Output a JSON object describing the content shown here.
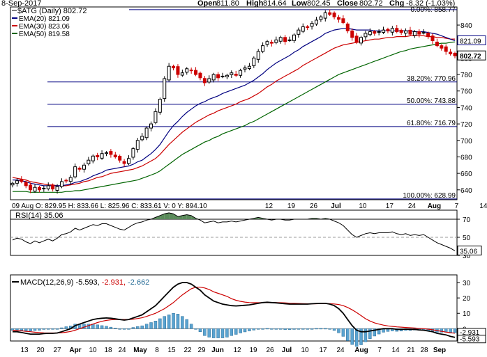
{
  "header": {
    "date": "8-Sep-2017",
    "open_label": "Open",
    "open": "811.80",
    "high_label": "High",
    "high": "814.64",
    "low_label": "Low",
    "low": "802.45",
    "close_label": "Close",
    "close": "802.72",
    "chg_label": "Chg",
    "chg": "-8.32 (-1.03%)"
  },
  "legend": {
    "symbol": "$ATG (Daily) 802.72",
    "ema20": "EMA(20) 821.09",
    "ema30": "EMA(30) 823.06",
    "ema50": "EMA(50) 819.58"
  },
  "colors": {
    "price_up": "#000000",
    "price_down": "#cc0000",
    "ema20": "#000080",
    "ema30": "#cc0000",
    "ema50": "#006400",
    "fib": "#000080",
    "rsi_fill": "#5a8a5a",
    "macd_hist": "#5ba3d0",
    "macd_line": "#000000",
    "signal_line": "#cc0000"
  },
  "volume_bar_text": "09 Aug O: 829.95  H: 833.66  L: 825.96  C: 833.61  V: 0  Y: 894.10",
  "rsi_label": "RSI(14) 35.06",
  "rsi_value": "35.06",
  "macd_label_prefix": "MACD(12,26,9) ",
  "macd_label_value": "-5.593",
  "macd_label_signal": "-2.931",
  "macd_label_hist": "-2.662",
  "macd_value_box": "-5.593",
  "macd_hist_box": "-2.931",
  "price_box_ema": "821.09",
  "price_box_close": "802.72",
  "chart_data": [
    {
      "type": "candlestick",
      "title": "$ATG (Daily)",
      "ylim": [
        628,
        862
      ],
      "y_ticks": [
        640,
        660,
        680,
        700,
        720,
        740,
        760,
        780,
        800,
        820,
        840
      ],
      "grid": false,
      "x_labels": [
        "12",
        "19",
        "26",
        "Jul",
        "10",
        "17",
        "24",
        "Aug",
        "7",
        "14",
        "21",
        "28",
        "Sep"
      ],
      "bottom_x_labels": [
        "13",
        "20",
        "27",
        "Apr",
        "10",
        "18",
        "24",
        "May",
        "8",
        "15",
        "22",
        "29",
        "Jun",
        "12",
        "19",
        "26",
        "Jul",
        "10",
        "17",
        "24",
        "Aug",
        "7",
        "14",
        "21",
        "28",
        "Sep"
      ],
      "fib_levels": [
        {
          "label": "0.00%: 858.77",
          "value": 858.77
        },
        {
          "label": "38.20%: 770.96",
          "value": 770.96
        },
        {
          "label": "50.00%: 743.88",
          "value": 743.88
        },
        {
          "label": "61.80%: 716.79",
          "value": 716.79
        },
        {
          "label": "100.00%: 628.99",
          "value": 628.99
        }
      ],
      "closes": [
        648,
        651,
        650,
        645,
        640,
        643,
        640,
        642,
        645,
        641,
        644,
        650,
        651,
        655,
        668,
        665,
        670,
        676,
        681,
        680,
        684,
        685,
        683,
        680,
        676,
        672,
        678,
        690,
        700,
        705,
        715,
        720,
        735,
        750,
        775,
        790,
        788,
        780,
        782,
        787,
        785,
        780,
        776,
        770,
        775,
        780,
        776,
        778,
        779,
        782,
        779,
        785,
        788,
        790,
        800,
        808,
        815,
        820,
        818,
        822,
        825,
        820,
        822,
        828,
        834,
        838,
        837,
        842,
        846,
        850,
        855,
        853,
        850,
        847,
        843,
        833,
        825,
        819,
        825,
        830,
        832,
        830,
        832,
        834,
        833,
        836,
        832,
        831,
        833,
        829,
        832,
        829,
        831,
        826,
        821,
        815,
        812,
        808,
        805,
        802.72
      ],
      "ema20": [
        652,
        652,
        651,
        650,
        648,
        647,
        646,
        645,
        645,
        645,
        645,
        645,
        646,
        647,
        649,
        650,
        652,
        654,
        657,
        659,
        661,
        664,
        665,
        666,
        667,
        668,
        669,
        671,
        674,
        676,
        680,
        684,
        689,
        695,
        703,
        711,
        718,
        723,
        729,
        734,
        738,
        742,
        745,
        747,
        750,
        752,
        754,
        757,
        759,
        761,
        763,
        765,
        767,
        770,
        773,
        777,
        781,
        786,
        790,
        794,
        797,
        800,
        803,
        807,
        810,
        814,
        817,
        820,
        823,
        826,
        830,
        832,
        834,
        835,
        836,
        836,
        835,
        834,
        834,
        834,
        834,
        833,
        833,
        833,
        833,
        833,
        833,
        833,
        833,
        833,
        832,
        832,
        832,
        831,
        830,
        829,
        827,
        825,
        823,
        821.09
      ],
      "ema30": [
        655,
        654,
        653,
        652,
        650,
        649,
        648,
        647,
        646,
        646,
        645,
        645,
        645,
        646,
        647,
        648,
        650,
        651,
        653,
        655,
        656,
        658,
        660,
        661,
        662,
        663,
        664,
        665,
        667,
        669,
        672,
        675,
        678,
        683,
        689,
        695,
        700,
        705,
        710,
        714,
        718,
        722,
        725,
        728,
        731,
        733,
        736,
        738,
        740,
        742,
        744,
        747,
        749,
        751,
        754,
        757,
        761,
        765,
        768,
        772,
        775,
        778,
        781,
        784,
        787,
        791,
        794,
        797,
        800,
        803,
        806,
        809,
        812,
        814,
        816,
        817,
        818,
        819,
        820,
        821,
        822,
        823,
        823,
        824,
        825,
        825,
        826,
        826,
        826,
        827,
        827,
        827,
        827,
        826,
        826,
        825,
        825,
        824,
        823,
        823.06
      ],
      "ema50": [
        638,
        638,
        638,
        638,
        637,
        637,
        637,
        637,
        637,
        637,
        637,
        637,
        638,
        638,
        639,
        639,
        640,
        641,
        642,
        643,
        644,
        645,
        646,
        647,
        648,
        649,
        650,
        651,
        652,
        654,
        656,
        658,
        660,
        663,
        667,
        671,
        675,
        679,
        683,
        686,
        689,
        692,
        695,
        698,
        700,
        703,
        705,
        708,
        710,
        712,
        714,
        716,
        718,
        721,
        723,
        726,
        729,
        732,
        735,
        738,
        741,
        744,
        747,
        750,
        753,
        756,
        759,
        762,
        765,
        768,
        771,
        774,
        777,
        780,
        782,
        784,
        786,
        788,
        790,
        792,
        794,
        796,
        798,
        800,
        802,
        804,
        806,
        808,
        809,
        811,
        812,
        813,
        814,
        815,
        816,
        817,
        818,
        818,
        819,
        819.58
      ]
    },
    {
      "type": "line",
      "title": "RSI(14)",
      "ylim": [
        30,
        80
      ],
      "y_ticks": [
        30,
        50,
        70
      ],
      "reference_lines": [
        70,
        50,
        30
      ],
      "values": [
        47,
        49,
        48,
        45,
        43,
        46,
        44,
        46,
        48,
        46,
        49,
        53,
        54,
        56,
        60,
        58,
        60,
        62,
        64,
        63,
        65,
        65,
        63,
        61,
        59,
        58,
        61,
        64,
        66,
        67,
        69,
        70,
        72,
        74,
        76,
        77,
        76,
        73,
        74,
        75,
        74,
        71,
        69,
        66,
        67,
        68,
        66,
        67,
        67,
        68,
        67,
        68,
        69,
        70,
        71,
        72,
        71,
        70,
        69,
        70,
        70,
        69,
        69,
        70,
        70,
        70,
        70,
        71,
        71,
        70,
        71,
        70,
        68,
        66,
        63,
        58,
        53,
        50,
        52,
        54,
        55,
        54,
        55,
        55,
        55,
        56,
        54,
        53,
        54,
        52,
        53,
        52,
        53,
        50,
        47,
        44,
        42,
        40,
        38,
        35.06
      ]
    },
    {
      "type": "line",
      "title": "MACD(12,26,9)",
      "ylim": [
        -8,
        35
      ],
      "y_ticks": [
        0,
        10,
        20,
        30
      ],
      "series": [
        {
          "name": "MACD",
          "values": [
            -2,
            -2,
            -2.5,
            -3,
            -3.5,
            -3.5,
            -3.5,
            -3.2,
            -3,
            -3,
            -2.8,
            -2,
            -1,
            0,
            2,
            3,
            4,
            5,
            6,
            6.5,
            6.8,
            7,
            6.8,
            6.4,
            6,
            5.6,
            6,
            7,
            8,
            9,
            11,
            13,
            15,
            18,
            21,
            24,
            27,
            29,
            30,
            30,
            29,
            27,
            25,
            22,
            20,
            18,
            17,
            16,
            15.5,
            15,
            14.8,
            15,
            15.2,
            15.5,
            16,
            16.5,
            17,
            17.2,
            17,
            16.8,
            16.5,
            16.2,
            16,
            16,
            16,
            16,
            16,
            16.2,
            16.4,
            16.5,
            16.5,
            16,
            15,
            13,
            10,
            6,
            2,
            -1,
            -2,
            -2,
            -1.5,
            -1,
            -0.5,
            0,
            0,
            0,
            -0.5,
            -0.5,
            -0.3,
            -0.5,
            -0.5,
            -0.8,
            -1,
            -1.5,
            -2,
            -3,
            -3.5,
            -4,
            -5,
            -5.593
          ]
        },
        {
          "name": "Signal",
          "values": [
            -1,
            -1.2,
            -1.4,
            -1.7,
            -2,
            -2.3,
            -2.5,
            -2.7,
            -2.8,
            -2.8,
            -2.8,
            -2.6,
            -2.3,
            -1.8,
            -1,
            0,
            1,
            2,
            3,
            4,
            4.8,
            5.4,
            5.8,
            6,
            6,
            6,
            6,
            6.2,
            6.6,
            7.1,
            8,
            9,
            10,
            11.5,
            13,
            15,
            17,
            19.5,
            22,
            24,
            26,
            27,
            27,
            26.5,
            25.5,
            24,
            23,
            22,
            21,
            19.5,
            18.5,
            17.8,
            17.3,
            17,
            16.9,
            16.9,
            17,
            17,
            17,
            17,
            16.9,
            16.8,
            16.6,
            16.5,
            16.4,
            16.3,
            16.2,
            16.2,
            16.2,
            16.3,
            16.3,
            16.3,
            16.1,
            15.7,
            15,
            13.8,
            12.3,
            10.5,
            8.5,
            6.5,
            5,
            3.8,
            3,
            2.3,
            1.8,
            1.5,
            1.2,
            1,
            0.8,
            0.6,
            0.4,
            0.2,
            0,
            -0.3,
            -0.7,
            -1.2,
            -1.7,
            -2.2,
            -2.6,
            -2.931
          ]
        }
      ],
      "histogram": [
        -1,
        -0.8,
        -1.1,
        -1.3,
        -1.5,
        -1.2,
        -1,
        -0.5,
        -0.2,
        -0.2,
        0,
        0.6,
        1.3,
        1.8,
        3,
        3,
        3,
        3,
        3,
        2.5,
        2,
        1.6,
        1,
        0.4,
        0,
        -0.4,
        0,
        0.8,
        1.4,
        1.9,
        3,
        4,
        5,
        6.5,
        8,
        9,
        10,
        9.5,
        8,
        6,
        3,
        0,
        -2,
        -4.5,
        -5.5,
        -6,
        -6,
        -6,
        -5.5,
        -4.5,
        -3.7,
        -2.8,
        -2.1,
        -1.5,
        -0.9,
        -0.4,
        0,
        0.2,
        0,
        -0.2,
        -0.4,
        -0.6,
        -0.6,
        -0.5,
        -0.4,
        -0.3,
        -0.2,
        0,
        0.2,
        0.2,
        0.2,
        -0.3,
        -1.1,
        -2.7,
        -5,
        -7.8,
        -10.3,
        -11.5,
        -10.5,
        -8.5,
        -6.5,
        -4.8,
        -3.5,
        -2.3,
        -1.8,
        -1.5,
        -1.7,
        -1.5,
        -1.1,
        -1.1,
        -0.9,
        -1,
        -1,
        -1.5,
        -1.7,
        -2.3,
        -2.3,
        -2.3,
        -2.8,
        -2.662
      ]
    }
  ]
}
